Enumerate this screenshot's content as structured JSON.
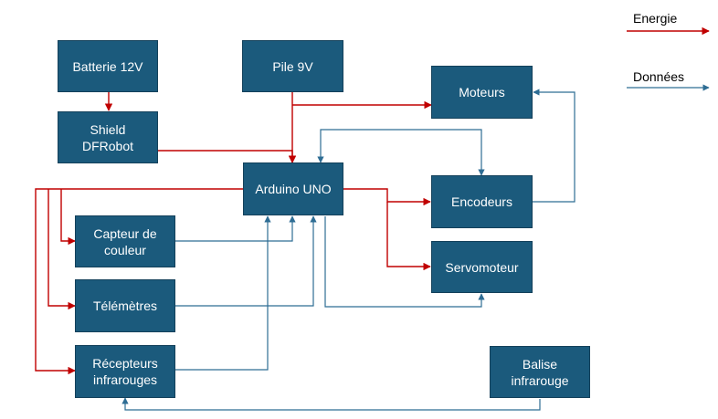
{
  "colors": {
    "box_fill": "#1b5a7c",
    "energy": "#c00000",
    "data": "#2e6d94"
  },
  "legend": {
    "energy": "Energie",
    "data": "Données"
  },
  "blocks": {
    "batterie": "Batterie 12V",
    "pile": "Pile 9V",
    "shield": "Shield\nDFRobot",
    "moteurs": "Moteurs",
    "arduino": "Arduino UNO",
    "encodeurs": "Encodeurs",
    "capteur": "Capteur de\ncouleur",
    "servo": "Servomoteur",
    "telemetres": "Télémètres",
    "recepteurs": "Récepteurs\ninfrarouges",
    "balise": "Balise\ninfrarouge"
  }
}
